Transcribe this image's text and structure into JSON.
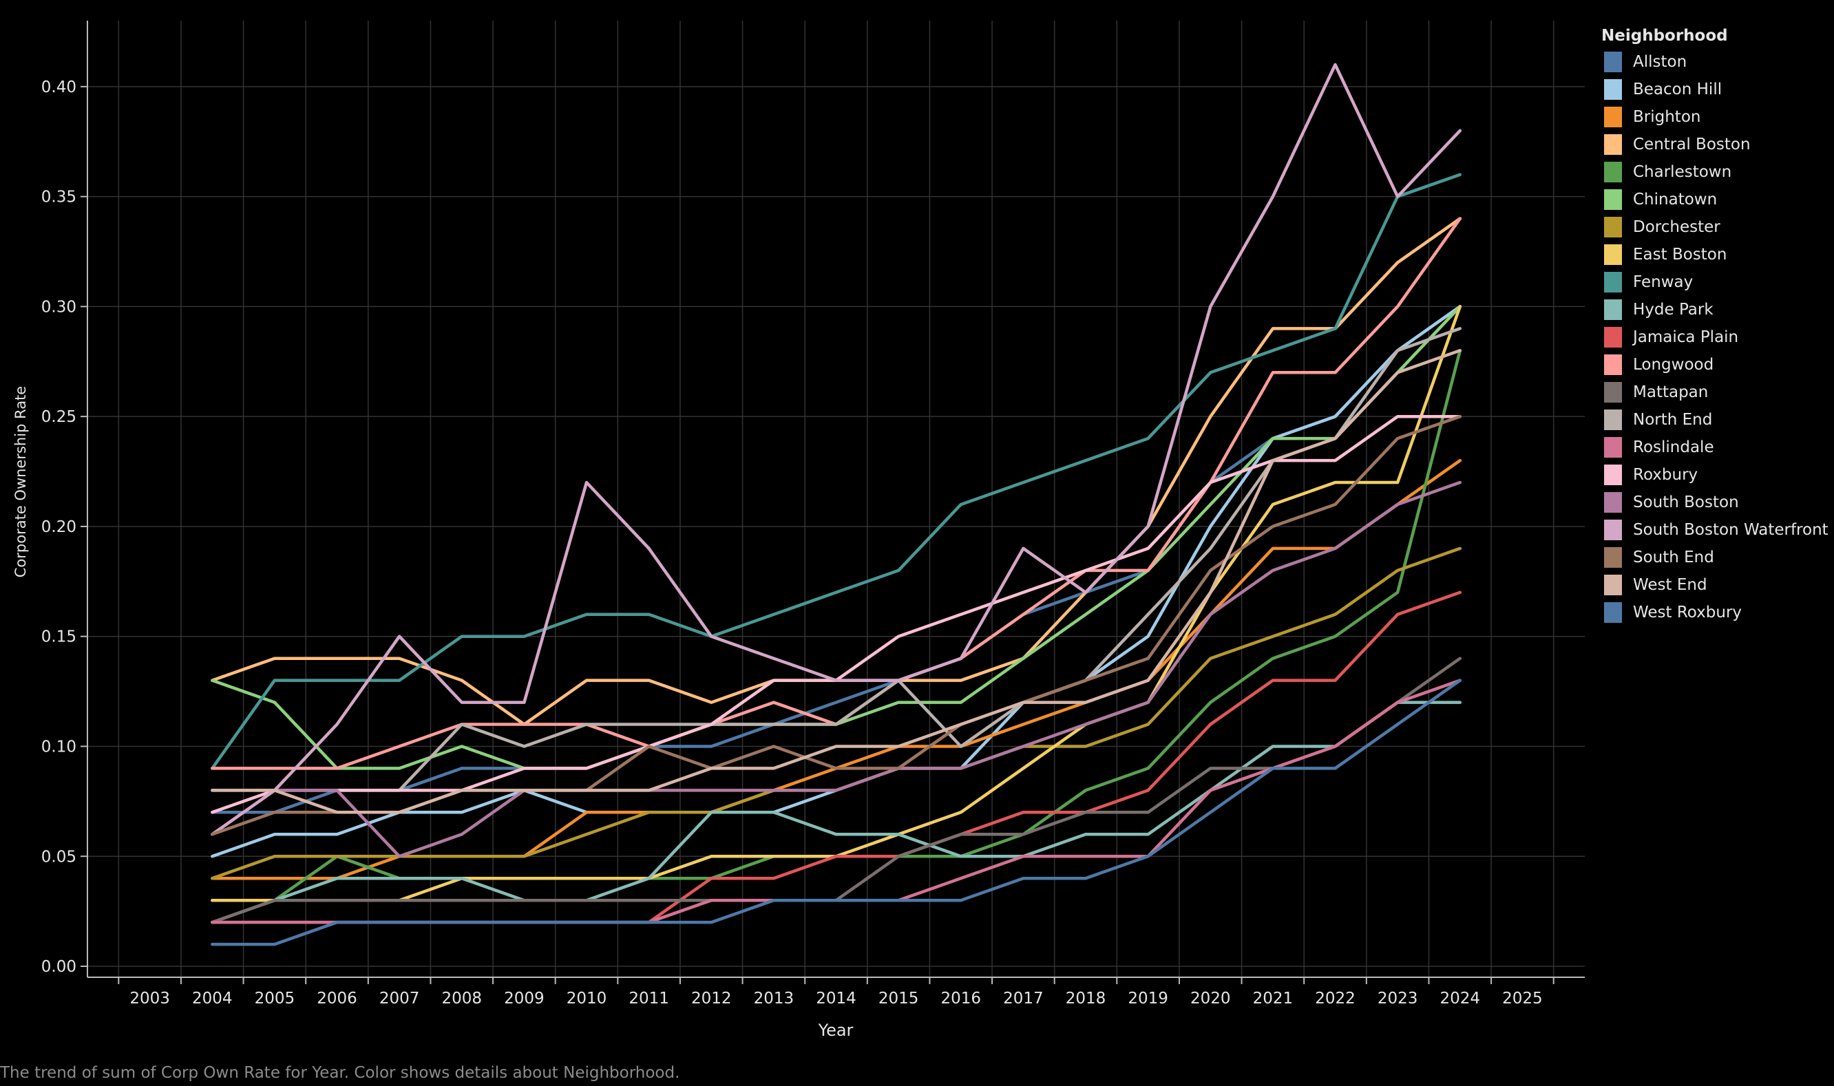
{
  "caption": "The trend of sum of Corp Own Rate for Year.  Color shows details about Neighborhood.",
  "chart_data": {
    "type": "line",
    "xlabel": "Year",
    "ylabel": "Corporate Ownership Rate",
    "x_ticks": [
      "2003",
      "2004",
      "2005",
      "2006",
      "2007",
      "2008",
      "2009",
      "2010",
      "2011",
      "2012",
      "2013",
      "2014",
      "2015",
      "2016",
      "2017",
      "2018",
      "2019",
      "2020",
      "2021",
      "2022",
      "2023",
      "2024",
      "2025"
    ],
    "y_ticks": [
      "0.00",
      "0.05",
      "0.10",
      "0.15",
      "0.20",
      "0.25",
      "0.30",
      "0.35",
      "0.40"
    ],
    "xlim": [
      2002,
      2026
    ],
    "ylim": [
      -0.005,
      0.43
    ],
    "grid": true,
    "legend_title": "Neighborhood",
    "legend_position": "right",
    "x": [
      2004,
      2005,
      2006,
      2007,
      2008,
      2009,
      2010,
      2011,
      2012,
      2013,
      2014,
      2015,
      2016,
      2017,
      2018,
      2019,
      2020,
      2021,
      2022,
      2023,
      2024
    ],
    "series": [
      {
        "name": "Allston",
        "color": "#4e79a7",
        "values": [
          0.07,
          0.07,
          0.08,
          0.08,
          0.09,
          0.09,
          0.09,
          0.1,
          0.1,
          0.11,
          0.12,
          0.13,
          0.14,
          0.16,
          0.17,
          0.18,
          0.22,
          0.24,
          0.25,
          0.28,
          0.3
        ]
      },
      {
        "name": "Beacon Hill",
        "color": "#a0cbe8",
        "values": [
          0.05,
          0.06,
          0.06,
          0.07,
          0.07,
          0.08,
          0.07,
          0.07,
          0.07,
          0.07,
          0.08,
          0.09,
          0.09,
          0.12,
          0.13,
          0.15,
          0.2,
          0.24,
          0.25,
          0.28,
          0.3
        ]
      },
      {
        "name": "Brighton",
        "color": "#f28e2b",
        "values": [
          0.04,
          0.04,
          0.04,
          0.05,
          0.05,
          0.05,
          0.07,
          0.07,
          0.07,
          0.08,
          0.09,
          0.1,
          0.1,
          0.11,
          0.12,
          0.13,
          0.16,
          0.19,
          0.19,
          0.21,
          0.23
        ]
      },
      {
        "name": "Central Boston",
        "color": "#ffbe7d",
        "values": [
          0.13,
          0.14,
          0.14,
          0.14,
          0.13,
          0.11,
          0.13,
          0.13,
          0.12,
          0.13,
          0.13,
          0.13,
          0.13,
          0.14,
          0.17,
          0.2,
          0.25,
          0.29,
          0.29,
          0.32,
          0.34
        ]
      },
      {
        "name": "Charlestown",
        "color": "#59a14f",
        "values": [
          0.03,
          0.03,
          0.05,
          0.04,
          0.04,
          0.04,
          0.04,
          0.04,
          0.04,
          0.05,
          0.05,
          0.05,
          0.05,
          0.06,
          0.08,
          0.09,
          0.12,
          0.14,
          0.15,
          0.17,
          0.28
        ]
      },
      {
        "name": "Chinatown",
        "color": "#8cd17d",
        "values": [
          0.13,
          0.12,
          0.09,
          0.09,
          0.1,
          0.09,
          0.09,
          0.1,
          0.11,
          0.11,
          0.11,
          0.12,
          0.12,
          0.14,
          0.16,
          0.18,
          0.21,
          0.24,
          0.24,
          0.27,
          0.3
        ]
      },
      {
        "name": "Dorchester",
        "color": "#b6992d",
        "values": [
          0.04,
          0.05,
          0.05,
          0.05,
          0.05,
          0.05,
          0.06,
          0.07,
          0.07,
          0.08,
          0.08,
          0.09,
          0.09,
          0.1,
          0.1,
          0.11,
          0.14,
          0.15,
          0.16,
          0.18,
          0.19
        ]
      },
      {
        "name": "East Boston",
        "color": "#f1ce63",
        "values": [
          0.03,
          0.03,
          0.03,
          0.03,
          0.04,
          0.04,
          0.04,
          0.04,
          0.05,
          0.05,
          0.05,
          0.06,
          0.07,
          0.09,
          0.11,
          0.12,
          0.17,
          0.21,
          0.22,
          0.22,
          0.3
        ]
      },
      {
        "name": "Fenway",
        "color": "#499894",
        "values": [
          0.09,
          0.13,
          0.13,
          0.13,
          0.15,
          0.15,
          0.16,
          0.16,
          0.15,
          0.16,
          0.17,
          0.18,
          0.21,
          0.22,
          0.23,
          0.24,
          0.27,
          0.28,
          0.29,
          0.35,
          0.36
        ]
      },
      {
        "name": "Hyde Park",
        "color": "#86bcb6",
        "values": [
          0.02,
          0.03,
          0.04,
          0.04,
          0.04,
          0.03,
          0.03,
          0.04,
          0.07,
          0.07,
          0.06,
          0.06,
          0.05,
          0.05,
          0.06,
          0.06,
          0.08,
          0.1,
          0.1,
          0.12,
          0.12
        ]
      },
      {
        "name": "Jamaica Plain",
        "color": "#e15759",
        "values": [
          0.02,
          0.02,
          0.02,
          0.02,
          0.02,
          0.02,
          0.02,
          0.02,
          0.04,
          0.04,
          0.05,
          0.05,
          0.06,
          0.07,
          0.07,
          0.08,
          0.11,
          0.13,
          0.13,
          0.16,
          0.17
        ]
      },
      {
        "name": "Longwood",
        "color": "#ff9d9a",
        "values": [
          0.09,
          0.09,
          0.09,
          0.1,
          0.11,
          0.11,
          0.11,
          0.1,
          0.11,
          0.12,
          0.11,
          0.13,
          0.14,
          0.16,
          0.18,
          0.18,
          0.22,
          0.27,
          0.27,
          0.3,
          0.34
        ]
      },
      {
        "name": "Mattapan",
        "color": "#79706e",
        "values": [
          0.02,
          0.03,
          0.03,
          0.03,
          0.03,
          0.03,
          0.03,
          0.03,
          0.03,
          0.03,
          0.03,
          0.05,
          0.06,
          0.06,
          0.07,
          0.07,
          0.09,
          0.09,
          0.1,
          0.12,
          0.14
        ]
      },
      {
        "name": "North End",
        "color": "#bab0ac",
        "values": [
          0.08,
          0.08,
          0.08,
          0.08,
          0.11,
          0.1,
          0.11,
          0.11,
          0.11,
          0.11,
          0.11,
          0.13,
          0.1,
          0.12,
          0.13,
          0.16,
          0.19,
          0.23,
          0.24,
          0.28,
          0.29
        ]
      },
      {
        "name": "Roslindale",
        "color": "#d37295",
        "values": [
          0.02,
          0.02,
          0.02,
          0.02,
          0.02,
          0.02,
          0.02,
          0.02,
          0.03,
          0.03,
          0.03,
          0.03,
          0.04,
          0.05,
          0.05,
          0.05,
          0.08,
          0.09,
          0.1,
          0.12,
          0.13
        ]
      },
      {
        "name": "Roxbury",
        "color": "#fabfd2",
        "values": [
          0.07,
          0.08,
          0.08,
          0.08,
          0.08,
          0.09,
          0.09,
          0.1,
          0.11,
          0.13,
          0.13,
          0.15,
          0.16,
          0.17,
          0.18,
          0.19,
          0.22,
          0.23,
          0.23,
          0.25,
          0.25
        ]
      },
      {
        "name": "South Boston",
        "color": "#b07aa1",
        "values": [
          0.06,
          0.08,
          0.08,
          0.05,
          0.06,
          0.08,
          0.08,
          0.08,
          0.08,
          0.08,
          0.08,
          0.09,
          0.09,
          0.1,
          0.11,
          0.12,
          0.16,
          0.18,
          0.19,
          0.21,
          0.22
        ]
      },
      {
        "name": "South Boston Waterfront",
        "color": "#d4a6c8",
        "values": [
          0.06,
          0.08,
          0.11,
          0.15,
          0.12,
          0.12,
          0.22,
          0.19,
          0.15,
          0.14,
          0.13,
          0.13,
          0.14,
          0.19,
          0.17,
          0.2,
          0.3,
          0.35,
          0.41,
          0.35,
          0.38
        ]
      },
      {
        "name": "South End",
        "color": "#9d7660",
        "values": [
          0.06,
          0.07,
          0.07,
          0.07,
          0.08,
          0.08,
          0.08,
          0.1,
          0.09,
          0.1,
          0.09,
          0.09,
          0.11,
          0.12,
          0.13,
          0.14,
          0.18,
          0.2,
          0.21,
          0.24,
          0.25
        ]
      },
      {
        "name": "West End",
        "color": "#d7b5a6",
        "values": [
          0.08,
          0.08,
          0.07,
          0.07,
          0.08,
          0.08,
          0.08,
          0.08,
          0.09,
          0.09,
          0.1,
          0.1,
          0.11,
          0.12,
          0.12,
          0.13,
          0.17,
          0.23,
          0.24,
          0.27,
          0.28
        ]
      },
      {
        "name": "West Roxbury",
        "color": "#4e79a7",
        "values": [
          0.01,
          0.01,
          0.02,
          0.02,
          0.02,
          0.02,
          0.02,
          0.02,
          0.02,
          0.03,
          0.03,
          0.03,
          0.03,
          0.04,
          0.04,
          0.05,
          0.07,
          0.09,
          0.09,
          0.11,
          0.13
        ]
      }
    ]
  }
}
